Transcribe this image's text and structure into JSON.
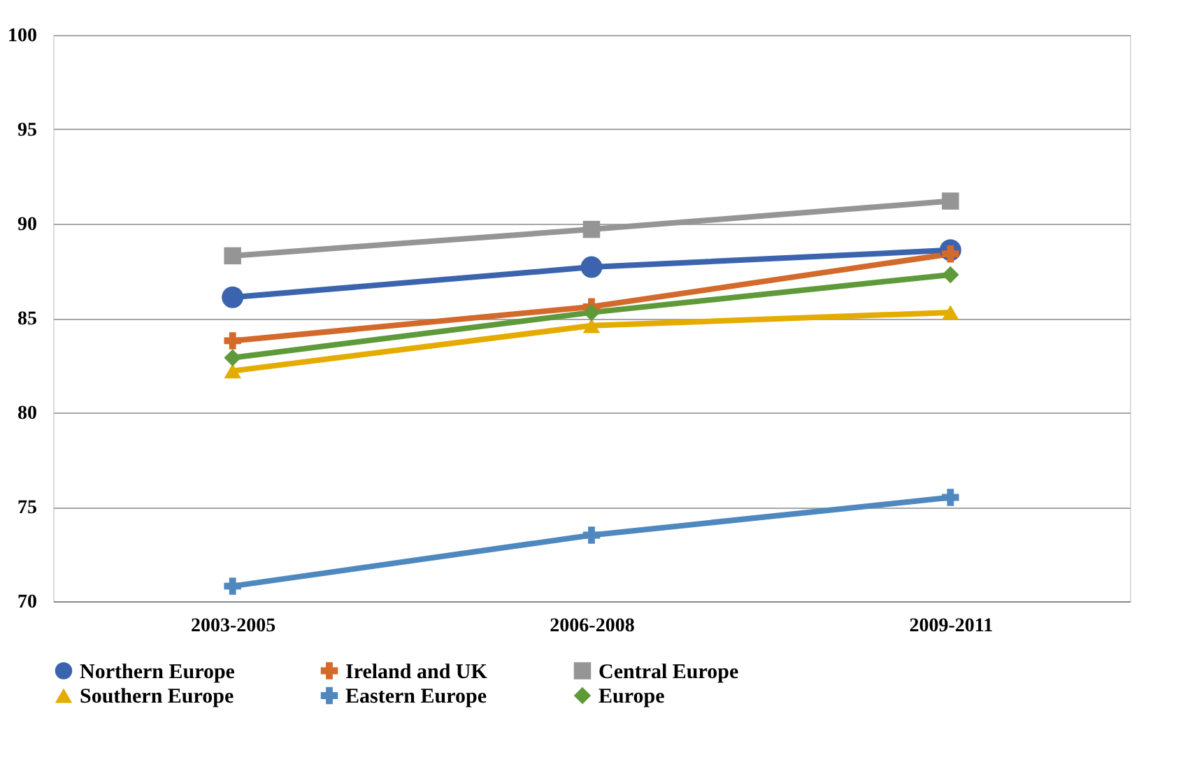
{
  "chart_data": {
    "type": "line",
    "categories": [
      "2003-2005",
      "2006-2008",
      "2009-2011"
    ],
    "ylim": [
      70,
      100
    ],
    "yticks": [
      70,
      75,
      80,
      85,
      90,
      95,
      100
    ],
    "grid": "y",
    "legend": "bottom",
    "line_style": "solid",
    "series": [
      {
        "name": "Northern Europe",
        "color": "#3c64ae",
        "marker": "circle",
        "values": [
          86.1,
          87.7,
          88.6
        ]
      },
      {
        "name": "Ireland and UK",
        "color": "#d3692a",
        "marker": "cross",
        "values": [
          83.8,
          85.6,
          88.4
        ]
      },
      {
        "name": "Central Europe",
        "color": "#959595",
        "marker": "square",
        "values": [
          88.3,
          89.7,
          91.2
        ]
      },
      {
        "name": "Southern Europe",
        "color": "#e5ac00",
        "marker": "triangle",
        "values": [
          82.2,
          84.6,
          85.3
        ]
      },
      {
        "name": "Eastern Europe",
        "color": "#4f88bf",
        "marker": "cross",
        "values": [
          70.8,
          73.5,
          75.5
        ]
      },
      {
        "name": "Europe",
        "color": "#5e9a3a",
        "marker": "diamond",
        "values": [
          82.9,
          85.3,
          87.3
        ]
      }
    ]
  }
}
